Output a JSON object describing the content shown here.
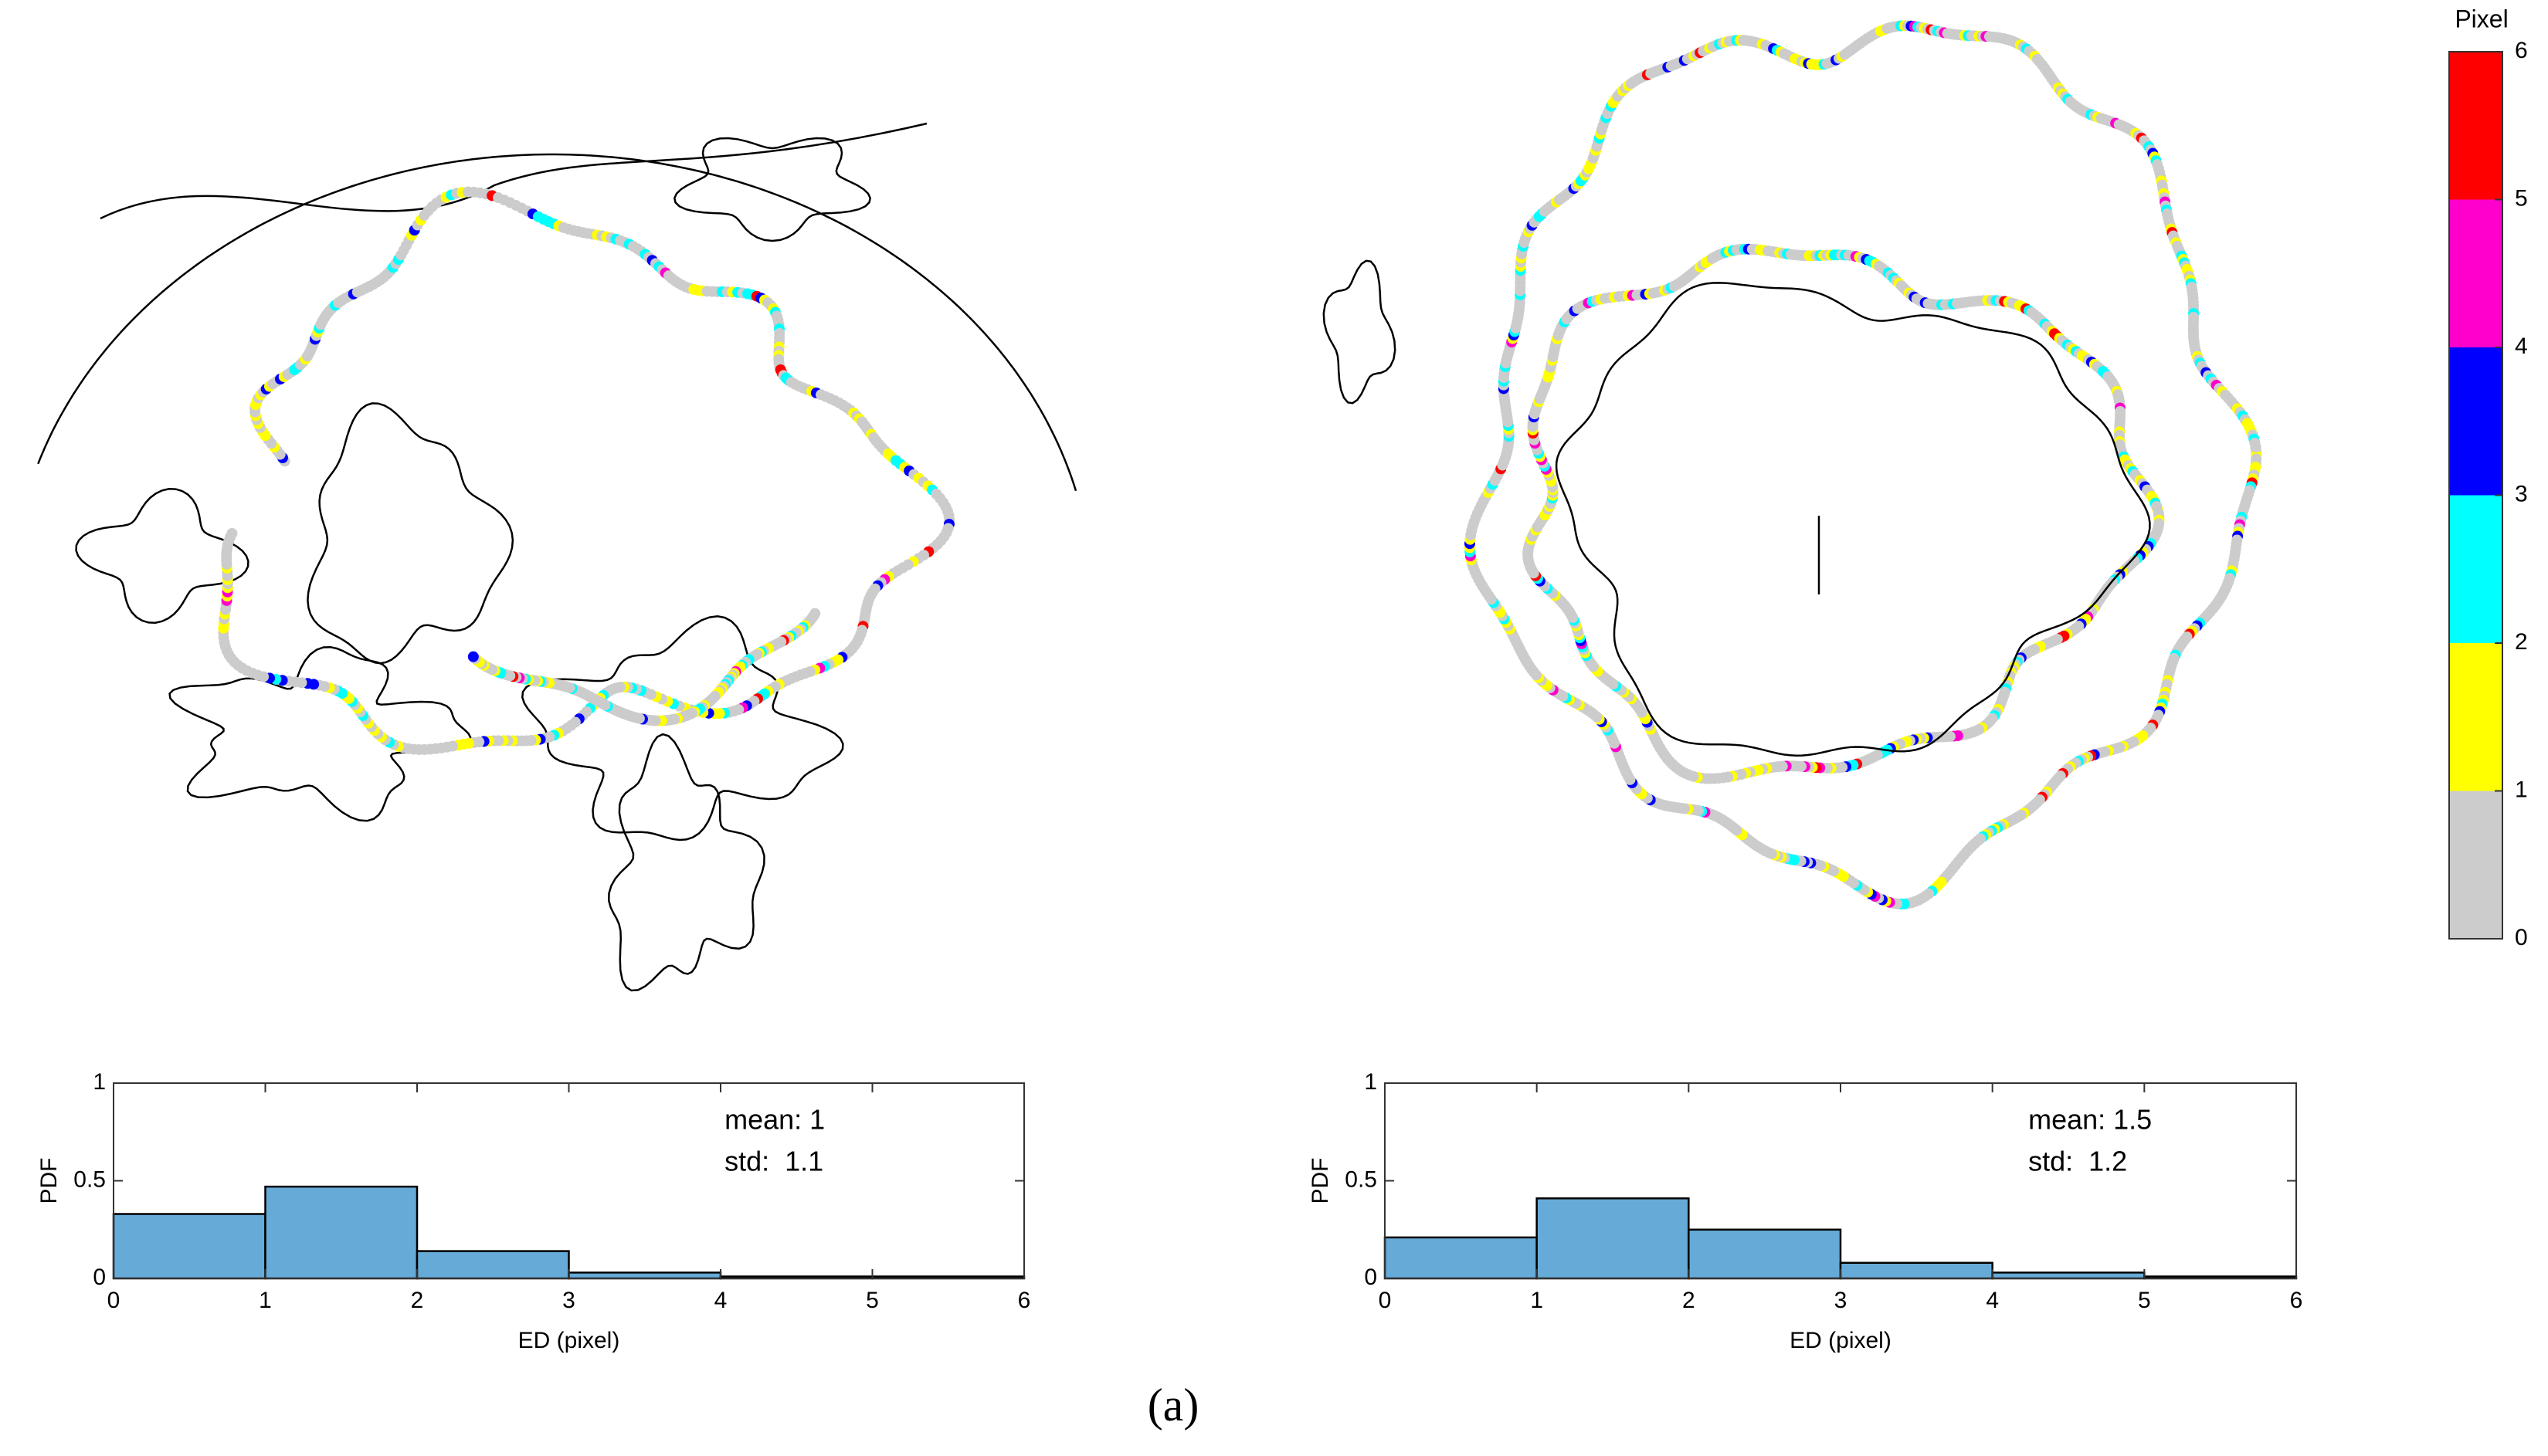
{
  "chart_data": [
    {
      "type": "histogram",
      "bins": [
        0,
        1,
        2,
        3,
        4,
        5,
        6
      ],
      "values": [
        0.33,
        0.47,
        0.14,
        0.03,
        0.01,
        0.01
      ],
      "color": "#66aad7",
      "xlabel": "ED (pixel)",
      "ylabel": "PDF",
      "xlim": [
        0,
        6
      ],
      "ylim": [
        0,
        1
      ],
      "xticks": [
        0,
        1,
        2,
        3,
        4,
        5,
        6
      ],
      "yticks": [
        0,
        0.5,
        1
      ],
      "annotations": [
        "mean: 1",
        "std:  1.1"
      ]
    },
    {
      "type": "histogram",
      "bins": [
        0,
        1,
        2,
        3,
        4,
        5,
        6
      ],
      "values": [
        0.21,
        0.41,
        0.25,
        0.08,
        0.03,
        0.01
      ],
      "color": "#66aad7",
      "xlabel": "ED (pixel)",
      "ylabel": "PDF",
      "xlim": [
        0,
        6
      ],
      "ylim": [
        0,
        1
      ],
      "xticks": [
        0,
        1,
        2,
        3,
        4,
        5,
        6
      ],
      "yticks": [
        0,
        0.5,
        1
      ],
      "annotations": [
        "mean: 1.5",
        "std:  1.2"
      ]
    }
  ],
  "colorbar": {
    "title": "Pixel",
    "lim": [
      0,
      6
    ],
    "ticks": [
      0,
      1,
      2,
      3,
      4,
      5,
      6
    ],
    "colors": [
      "#cccccc",
      "#ffff00",
      "#00ffff",
      "#0000ff",
      "#ff00cc",
      "#ff0000"
    ]
  },
  "caption": "(a)"
}
